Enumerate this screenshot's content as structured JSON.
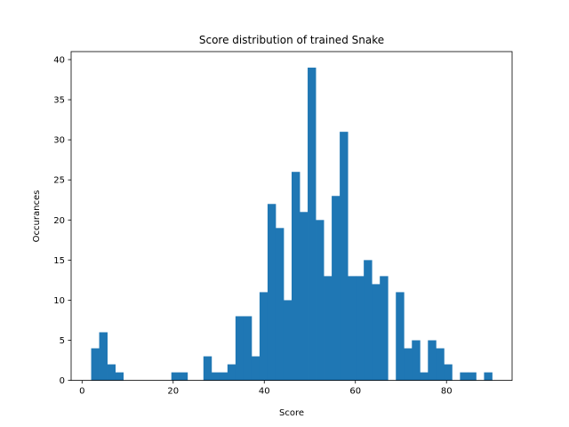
{
  "chart_data": {
    "type": "bar",
    "subtype": "histogram",
    "title": "Score distribution of trained Snake",
    "xlabel": "Score",
    "ylabel": "Occurances",
    "xlim": [
      -2.4,
      94.4
    ],
    "ylim": [
      0,
      41
    ],
    "xticks": [
      0,
      20,
      40,
      60,
      80
    ],
    "yticks": [
      0,
      5,
      10,
      15,
      20,
      25,
      30,
      35,
      40
    ],
    "grid": false,
    "legend": "none",
    "bar_color": "#1f77b4",
    "bin_start": 2,
    "bin_width": 1.76,
    "values": [
      4,
      6,
      2,
      1,
      0,
      0,
      0,
      0,
      0,
      0,
      1,
      1,
      0,
      0,
      3,
      1,
      1,
      2,
      8,
      8,
      3,
      11,
      22,
      19,
      10,
      26,
      21,
      39,
      20,
      13,
      23,
      31,
      13,
      13,
      15,
      12,
      13,
      0,
      11,
      4,
      5,
      1,
      5,
      4,
      2,
      0,
      1,
      1,
      0,
      1
    ]
  }
}
